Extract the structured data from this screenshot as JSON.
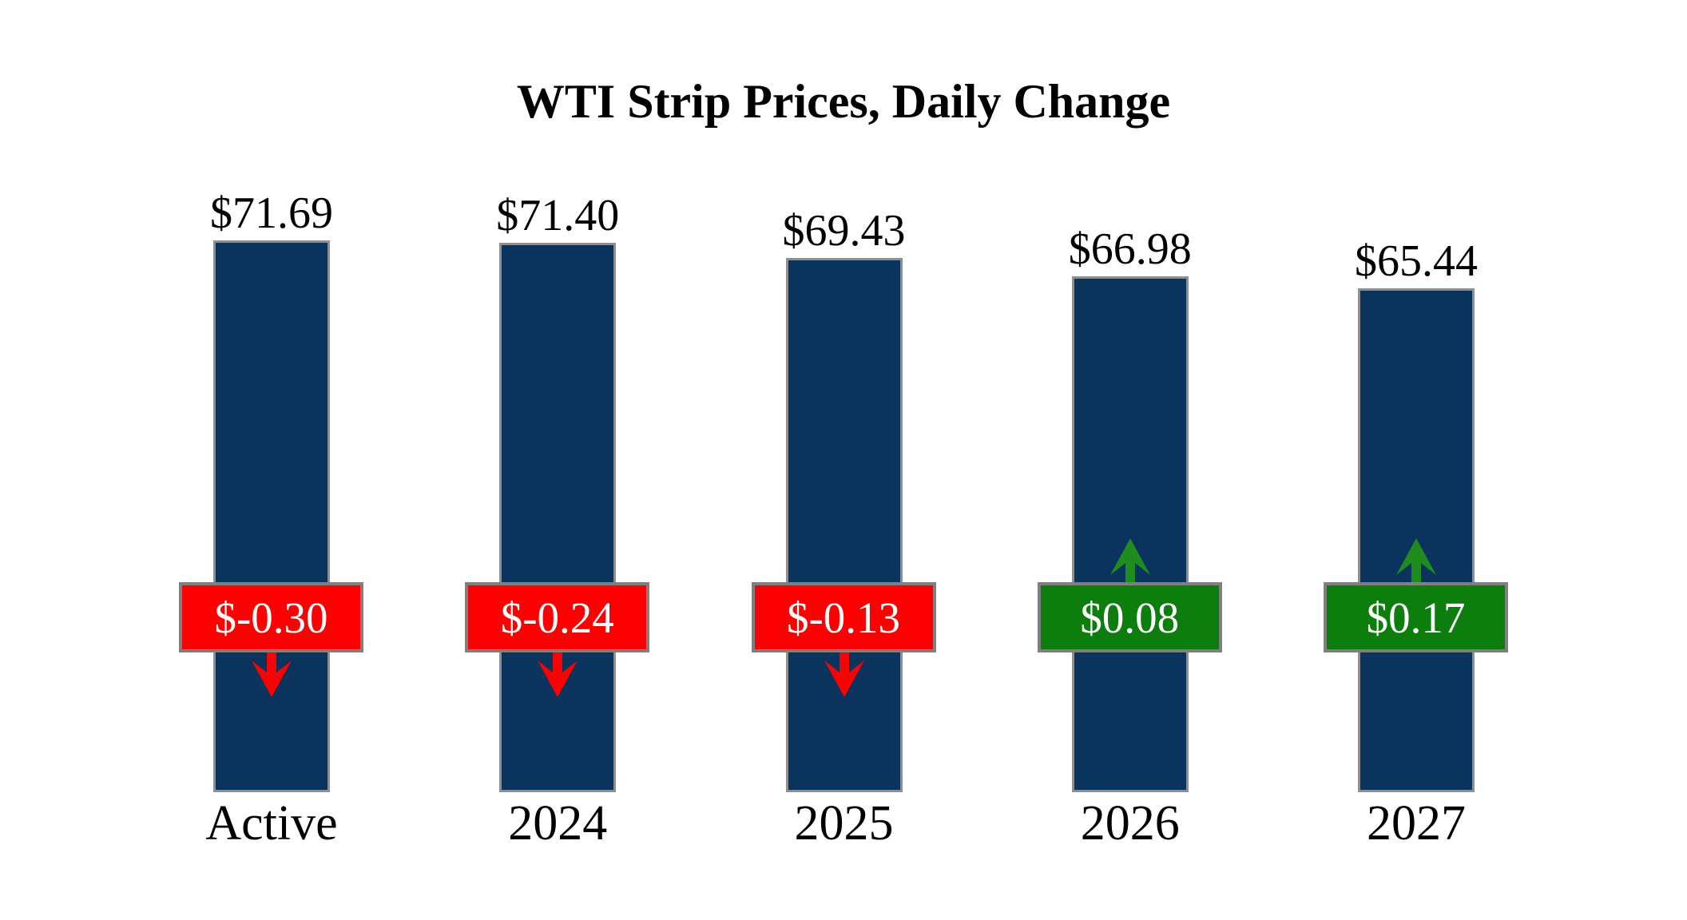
{
  "chart_data": {
    "type": "bar",
    "title": "WTI Strip Prices, Daily Change",
    "categories": [
      "Active",
      "2024",
      "2025",
      "2026",
      "2027"
    ],
    "values": [
      71.69,
      71.4,
      69.43,
      66.98,
      65.44
    ],
    "changes": [
      -0.3,
      -0.24,
      -0.13,
      0.08,
      0.17
    ],
    "points": [
      {
        "category": "Active",
        "value": 71.69,
        "price_label": "$71.69",
        "change": -0.3,
        "change_label": "$-0.30",
        "direction": "down"
      },
      {
        "category": "2024",
        "value": 71.4,
        "price_label": "$71.40",
        "change": -0.24,
        "change_label": "$-0.24",
        "direction": "down"
      },
      {
        "category": "2025",
        "value": 69.43,
        "price_label": "$69.43",
        "change": -0.13,
        "change_label": "$-0.13",
        "direction": "down"
      },
      {
        "category": "2026",
        "value": 66.98,
        "price_label": "$66.98",
        "change": 0.08,
        "change_label": "$0.08",
        "direction": "up"
      },
      {
        "category": "2027",
        "value": 65.44,
        "price_label": "$65.44",
        "change": 0.17,
        "change_label": "$0.17",
        "direction": "up"
      }
    ],
    "xlabel": "",
    "ylabel": "",
    "ylim": [
      0,
      71.69
    ],
    "grid": false,
    "legend": false,
    "axes_visible": false,
    "colors": {
      "bar_fill": "#0a335e",
      "bar_border": "#8f8f8f",
      "badge_border": "#7f7f7f",
      "negative": "#fb0101",
      "positive": "#0d7d0d",
      "positive_arrow": "#1e8c1e",
      "badge_text": "#ffffff",
      "title_text": "#000000"
    }
  }
}
